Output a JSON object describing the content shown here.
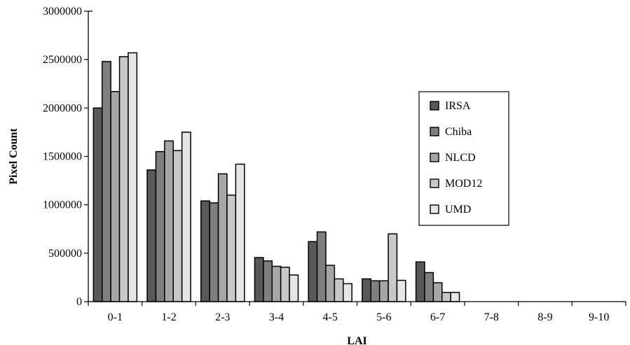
{
  "chart_data": {
    "type": "bar",
    "title": "",
    "xlabel": "LAI",
    "ylabel": "Pixel Count",
    "ylim": [
      0,
      3000000
    ],
    "yticks": [
      "0",
      "500000",
      "1000000",
      "1500000",
      "2000000",
      "2500000",
      "3000000"
    ],
    "grid": false,
    "legend_position": "right",
    "categories": [
      "0-1",
      "1-2",
      "2-3",
      "3-4",
      "4-5",
      "5-6",
      "6-7",
      "7-8",
      "8-9",
      "9-10"
    ],
    "series": [
      {
        "name": "IRSA",
        "color": "#595959",
        "values": [
          2000000,
          1360000,
          1040000,
          455000,
          620000,
          235000,
          410000,
          0,
          0,
          0
        ]
      },
      {
        "name": "Chiba",
        "color": "#7f7f7f",
        "values": [
          2480000,
          1550000,
          1020000,
          420000,
          720000,
          215000,
          300000,
          0,
          0,
          0
        ]
      },
      {
        "name": "NLCD",
        "color": "#a6a6a6",
        "values": [
          2170000,
          1660000,
          1320000,
          365000,
          375000,
          215000,
          195000,
          0,
          0,
          0
        ]
      },
      {
        "name": "MOD12",
        "color": "#c8c8c8",
        "values": [
          2530000,
          1560000,
          1100000,
          355000,
          235000,
          700000,
          95000,
          0,
          0,
          0
        ]
      },
      {
        "name": "UMD",
        "color": "#e6e6e6",
        "values": [
          2570000,
          1750000,
          1420000,
          275000,
          185000,
          220000,
          95000,
          0,
          0,
          0
        ]
      }
    ]
  }
}
